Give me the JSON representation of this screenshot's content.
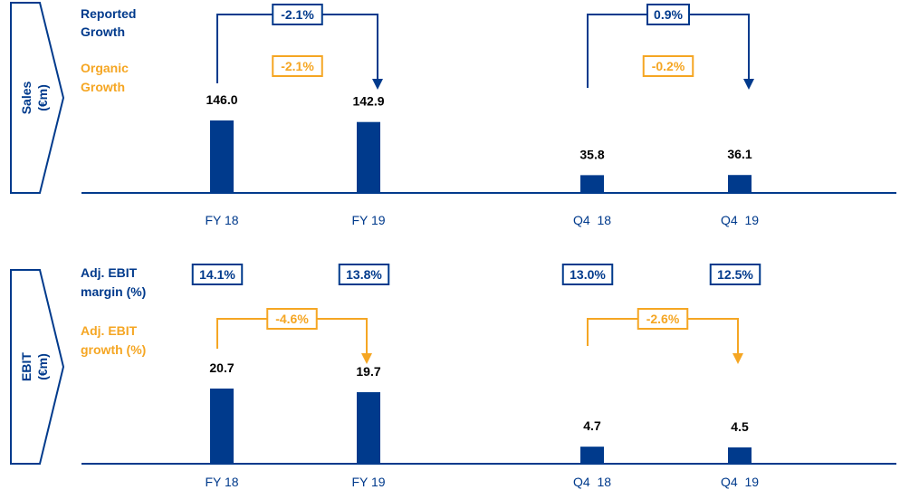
{
  "colors": {
    "navy": "#003a8c",
    "orange": "#f5a623",
    "text": "#000000"
  },
  "chart_data": [
    {
      "type": "bar",
      "panel_label": "Sales\n(€m)",
      "legend": [
        {
          "text": "Reported Growth",
          "color": "#003a8c"
        },
        {
          "text": "Organic Growth",
          "color": "#f5a623"
        }
      ],
      "categories": [
        "FY 18",
        "FY 19",
        "Q4  18",
        "Q4  19"
      ],
      "values": [
        146.0,
        142.9,
        35.8,
        36.1
      ],
      "data_labels": [
        "146.0",
        "142.9",
        "35.8",
        "36.1"
      ],
      "annotations": [
        {
          "from": "FY 18",
          "to": "FY 19",
          "reported": "-2.1%",
          "organic": "-2.1%"
        },
        {
          "from": "Q4  18",
          "to": "Q4  19",
          "reported": "0.9%",
          "organic": "-0.2%"
        }
      ]
    },
    {
      "type": "bar",
      "panel_label": "EBIT\n(€m)",
      "legend": [
        {
          "text": "Adj. EBIT margin (%)",
          "color": "#003a8c"
        },
        {
          "text": "Adj. EBIT growth (%)",
          "color": "#f5a623"
        }
      ],
      "categories": [
        "FY 18",
        "FY 19",
        "Q4  18",
        "Q4  19"
      ],
      "values": [
        20.7,
        19.7,
        4.7,
        4.5
      ],
      "data_labels": [
        "20.7",
        "19.7",
        "4.7",
        "4.5"
      ],
      "margins": [
        "14.1%",
        "13.8%",
        "13.0%",
        "12.5%"
      ],
      "annotations": [
        {
          "from": "FY 18",
          "to": "FY 19",
          "growth": "-4.6%"
        },
        {
          "from": "Q4  18",
          "to": "Q4  19",
          "growth": "-2.6%"
        }
      ]
    }
  ]
}
